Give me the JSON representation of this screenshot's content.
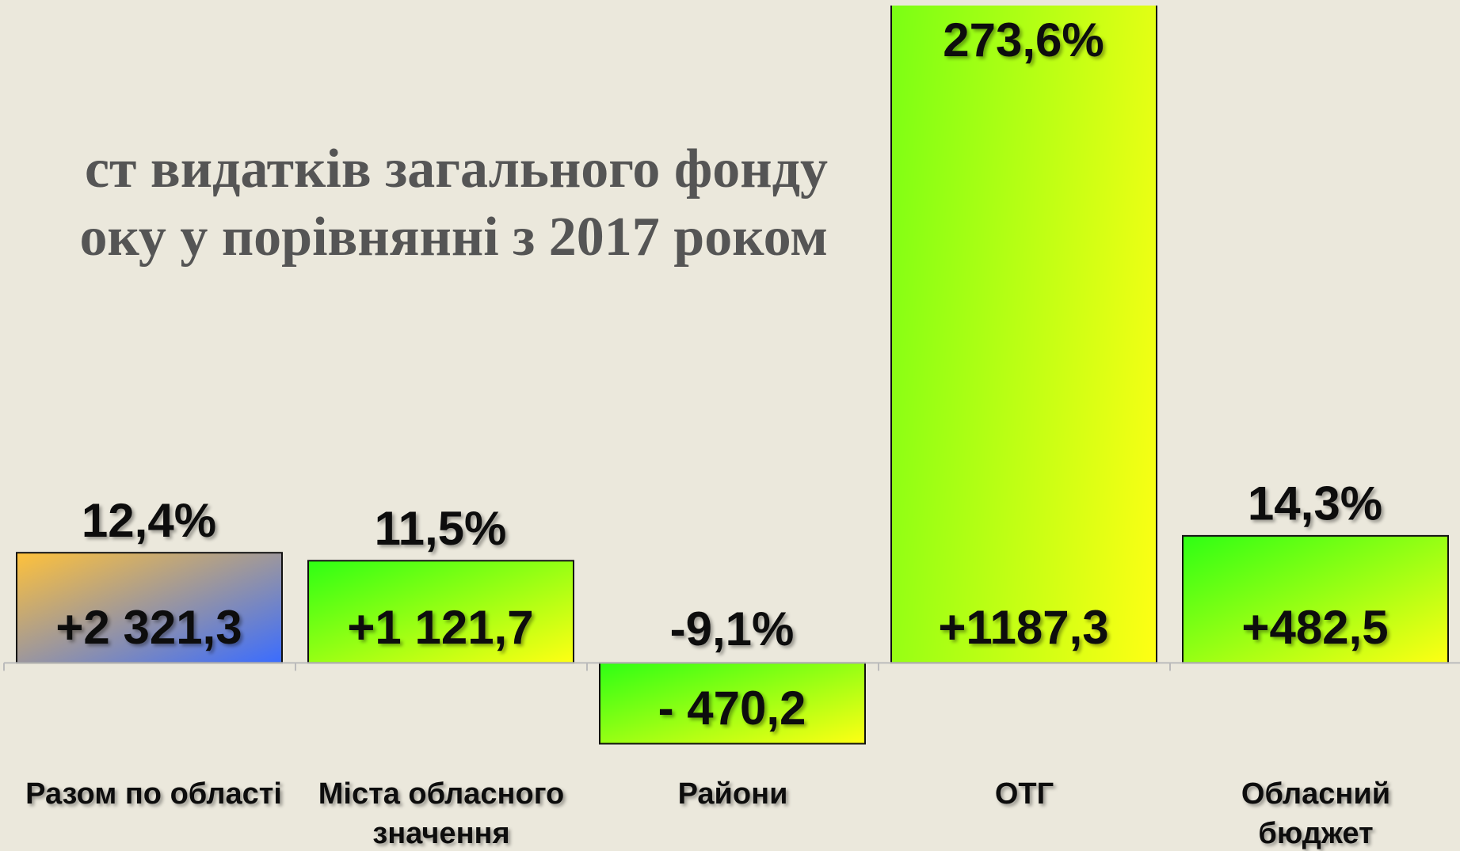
{
  "chart_data": {
    "type": "bar",
    "title_lines": [
      "ст видатків загального фонду",
      "оку у порівнянні з 2017 роком"
    ],
    "categories": [
      [
        "Разом по області"
      ],
      [
        "Міста обласного",
        "значення"
      ],
      [
        "Райони"
      ],
      [
        "ОТГ"
      ],
      [
        "Обласний",
        "бюджет"
      ]
    ],
    "values": [
      12.4,
      11.5,
      -9.1,
      273.6,
      14.3
    ],
    "value_labels": [
      "12,4%",
      "11,5%",
      "-9,1%",
      "273,6%",
      "14,3%"
    ],
    "changes": [
      2321.3,
      1121.7,
      -470.2,
      1187.3,
      482.5
    ],
    "change_labels": [
      "+2 321,3",
      "+1 121,7",
      "- 470,2",
      "+1187,3",
      "+482,5"
    ],
    "gradients": [
      [
        "#ffc23a",
        "#3a6cff"
      ],
      [
        "#2eff14",
        "#ffff14"
      ],
      [
        "#2eff14",
        "#ffff14"
      ],
      [
        "#2eff14",
        "#ffff14"
      ],
      [
        "#2eff14",
        "#ffff14"
      ]
    ],
    "ylim": [
      -21,
      74
    ]
  }
}
